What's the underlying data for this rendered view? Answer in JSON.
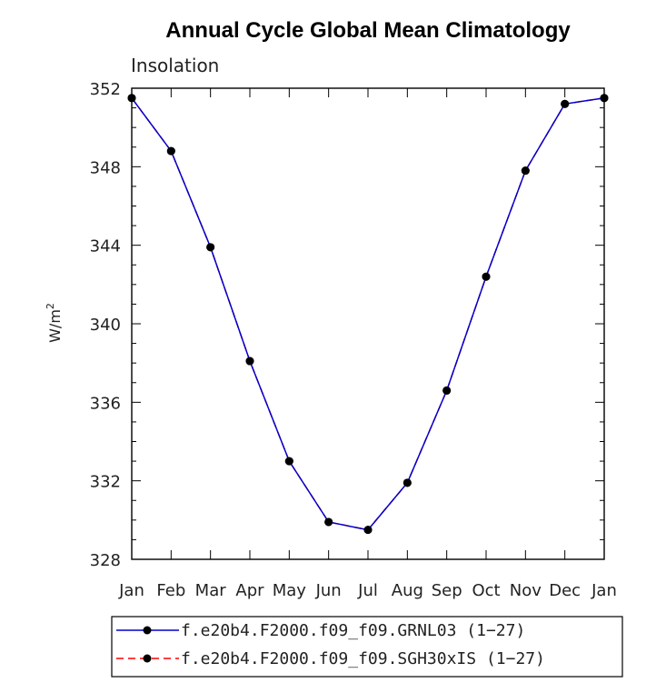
{
  "chart_data": {
    "type": "line",
    "title": "Annual Cycle Global Mean Climatology",
    "subtitle": "Insolation",
    "ylabel_base": "W/m",
    "ylabel_sup": "2",
    "categories": [
      "Jan",
      "Feb",
      "Mar",
      "Apr",
      "May",
      "Jun",
      "Jul",
      "Aug",
      "Sep",
      "Oct",
      "Nov",
      "Dec",
      "Jan"
    ],
    "ylim": [
      328,
      352
    ],
    "yticks": [
      "328",
      "332",
      "336",
      "340",
      "344",
      "348",
      "352"
    ],
    "series": [
      {
        "name": "f.e20b4.F2000.f09_f09.GRNL03 (1−27)",
        "color": "#0000cc",
        "line_style": "solid",
        "values": [
          351.5,
          348.8,
          343.9,
          338.1,
          333.0,
          329.9,
          329.5,
          331.9,
          336.6,
          342.4,
          347.8,
          351.2,
          351.5
        ]
      },
      {
        "name": "f.e20b4.F2000.f09_f09.SGH30xIS (1−27)",
        "color": "#ff0000",
        "line_style": "dashed",
        "values": [
          351.5,
          348.8,
          343.9,
          338.1,
          333.0,
          329.9,
          329.5,
          331.9,
          336.6,
          342.4,
          347.8,
          351.2,
          351.5
        ]
      }
    ],
    "marker_color": "#000000",
    "legend_position": "bottom",
    "grid": false
  }
}
